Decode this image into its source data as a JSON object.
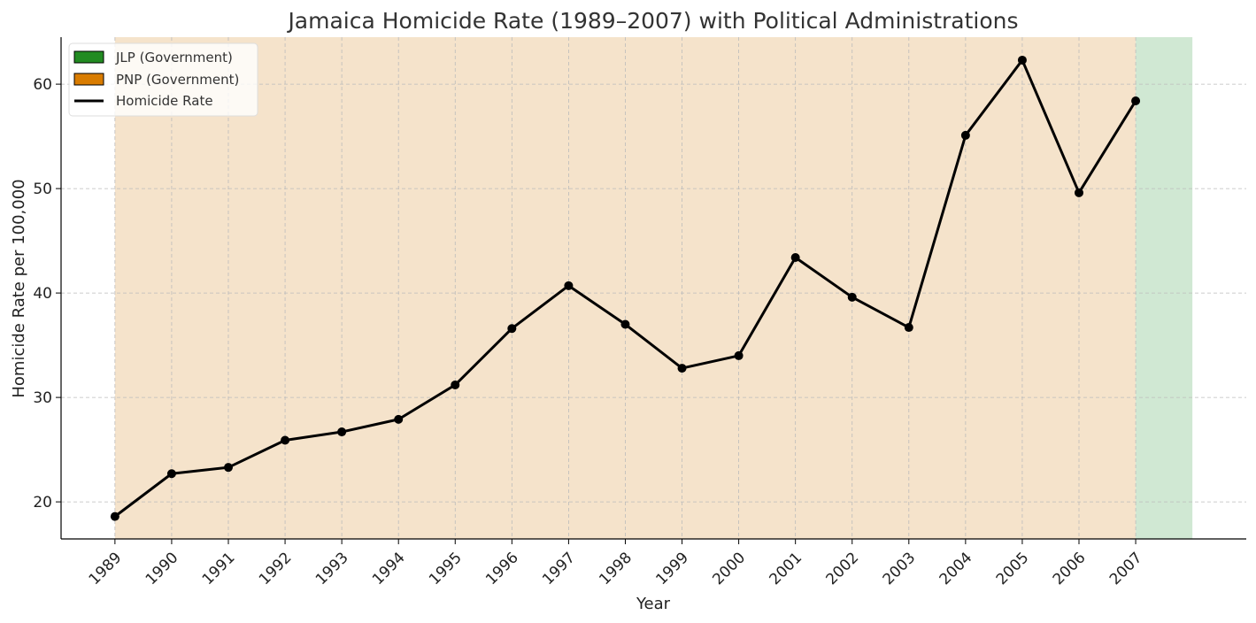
{
  "chart_data": {
    "type": "line",
    "title": "Jamaica Homicide Rate (1989–2007) with Political Administrations",
    "xlabel": "Year",
    "ylabel": "Homicide Rate per 100,000",
    "x": [
      1989,
      1990,
      1991,
      1992,
      1993,
      1994,
      1995,
      1996,
      1997,
      1998,
      1999,
      2000,
      2001,
      2002,
      2003,
      2004,
      2005,
      2006,
      2007
    ],
    "x_tick_labels": [
      "1989",
      "1990",
      "1991",
      "1992",
      "1993",
      "1994",
      "1995",
      "1996",
      "1997",
      "1998",
      "1999",
      "2000",
      "2001",
      "2002",
      "2003",
      "2004",
      "2005",
      "2006",
      "2007"
    ],
    "series": [
      {
        "name": "Homicide Rate",
        "color": "#000000",
        "values": [
          18.6,
          22.7,
          23.3,
          25.9,
          26.7,
          27.9,
          31.2,
          36.6,
          40.7,
          37.0,
          32.8,
          34.0,
          43.4,
          39.6,
          36.7,
          55.1,
          62.3,
          49.6,
          58.4
        ]
      }
    ],
    "y_ticks": [
      20,
      30,
      40,
      50,
      60
    ],
    "y_tick_labels": [
      "20",
      "30",
      "40",
      "50",
      "60"
    ],
    "xlim": [
      1988.05,
      2008.95
    ],
    "ylim": [
      16.45,
      64.5
    ],
    "grid": true,
    "legend_placement": "top-left",
    "administrations": [
      {
        "label": "PNP (Government)",
        "start": 1989,
        "end": 2007,
        "color": "#D97C00",
        "shade": "#F5E3CB"
      },
      {
        "label": "JLP (Government)",
        "start": 2007,
        "end": 2008,
        "color": "#228B22",
        "shade": "#D0E8D3"
      }
    ],
    "legend": [
      "JLP (Government)",
      "PNP (Government)",
      "Homicide Rate"
    ]
  }
}
